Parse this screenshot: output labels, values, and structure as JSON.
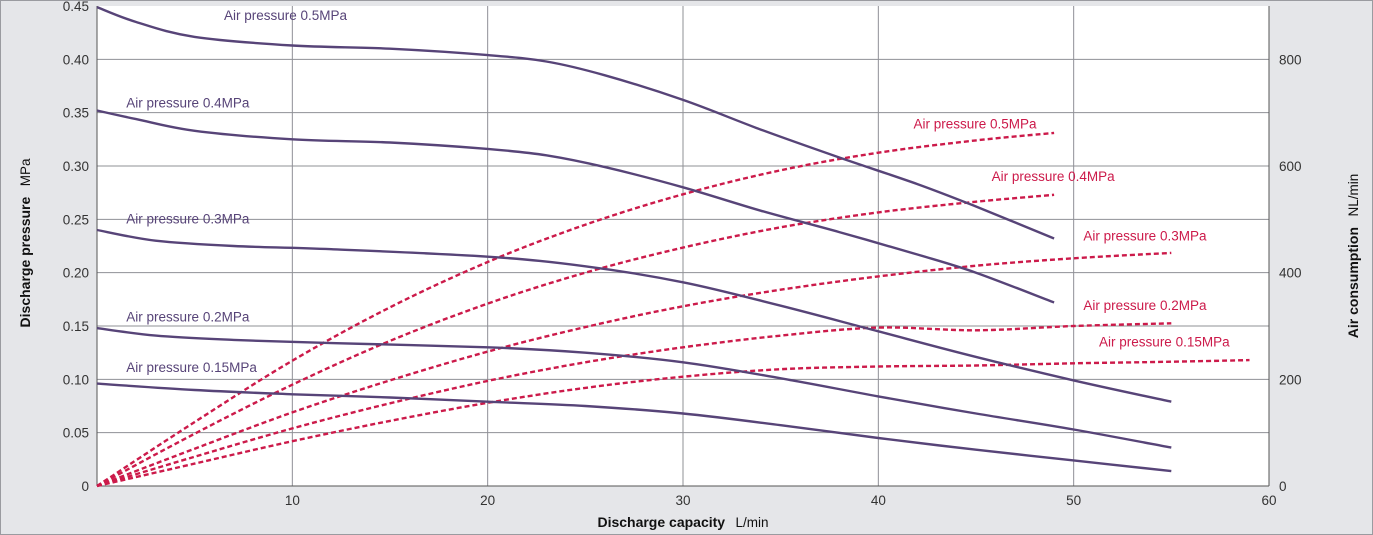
{
  "chart_data": {
    "type": "line",
    "xlabel": "Discharge capacity",
    "xlabel_unit": "L/min",
    "ylabel": "Discharge pressure",
    "ylabel_unit": "MPa",
    "y2label": "Air consumption",
    "y2label_unit": "NL/min",
    "xlim": [
      0,
      60
    ],
    "ylim": [
      0,
      0.45
    ],
    "y2lim": [
      0,
      900
    ],
    "x_ticks": [
      10,
      20,
      30,
      40,
      50,
      60
    ],
    "y_ticks": [
      {
        "v": 0,
        "label": "0"
      },
      {
        "v": 0.05,
        "label": "0.05"
      },
      {
        "v": 0.1,
        "label": "0.10"
      },
      {
        "v": 0.15,
        "label": "0.15"
      },
      {
        "v": 0.2,
        "label": "0.20"
      },
      {
        "v": 0.25,
        "label": "0.25"
      },
      {
        "v": 0.3,
        "label": "0.30"
      },
      {
        "v": 0.35,
        "label": "0.35"
      },
      {
        "v": 0.4,
        "label": "0.40"
      },
      {
        "v": 0.45,
        "label": "0.45"
      }
    ],
    "y2_ticks": [
      0,
      200,
      400,
      600,
      800
    ],
    "x_grid": [
      10,
      20,
      30,
      40,
      50
    ],
    "y_grid": [
      0.05,
      0.1,
      0.15,
      0.2,
      0.25,
      0.3,
      0.35,
      0.4
    ],
    "colors": {
      "pressure": "#574478",
      "air": "#cc1a4a",
      "frame": "#e5e6e9",
      "grid": "#8f9096"
    },
    "pressure_series": [
      {
        "name": "Air pressure 0.5MPa",
        "label_anchor": [
          6.5,
          0.437
        ],
        "points": [
          [
            0,
            0.449
          ],
          [
            2,
            0.435
          ],
          [
            5,
            0.421
          ],
          [
            10,
            0.413
          ],
          [
            15,
            0.41
          ],
          [
            20,
            0.404
          ],
          [
            23,
            0.398
          ],
          [
            26,
            0.385
          ],
          [
            30,
            0.362
          ],
          [
            34,
            0.334
          ],
          [
            38,
            0.308
          ],
          [
            42,
            0.283
          ],
          [
            45,
            0.262
          ],
          [
            49,
            0.232
          ]
        ]
      },
      {
        "name": "Air pressure 0.4MPa",
        "label_anchor": [
          1.5,
          0.355
        ],
        "points": [
          [
            0,
            0.352
          ],
          [
            2,
            0.344
          ],
          [
            5,
            0.333
          ],
          [
            10,
            0.325
          ],
          [
            15,
            0.322
          ],
          [
            20,
            0.316
          ],
          [
            23,
            0.31
          ],
          [
            26,
            0.299
          ],
          [
            30,
            0.28
          ],
          [
            34,
            0.258
          ],
          [
            38,
            0.238
          ],
          [
            42,
            0.217
          ],
          [
            45,
            0.2
          ],
          [
            49,
            0.172
          ]
        ]
      },
      {
        "name": "Air pressure 0.3MPa",
        "label_anchor": [
          1.5,
          0.246
        ],
        "points": [
          [
            0,
            0.24
          ],
          [
            3,
            0.23
          ],
          [
            7,
            0.225
          ],
          [
            12,
            0.222
          ],
          [
            20,
            0.215
          ],
          [
            25,
            0.206
          ],
          [
            30,
            0.191
          ],
          [
            35,
            0.169
          ],
          [
            40,
            0.145
          ],
          [
            45,
            0.121
          ],
          [
            50,
            0.099
          ],
          [
            55,
            0.079
          ]
        ]
      },
      {
        "name": "Air pressure 0.2MPa",
        "label_anchor": [
          1.5,
          0.154
        ],
        "points": [
          [
            0,
            0.148
          ],
          [
            3,
            0.141
          ],
          [
            7,
            0.137
          ],
          [
            12,
            0.134
          ],
          [
            20,
            0.13
          ],
          [
            25,
            0.125
          ],
          [
            30,
            0.116
          ],
          [
            35,
            0.101
          ],
          [
            40,
            0.084
          ],
          [
            45,
            0.068
          ],
          [
            50,
            0.053
          ],
          [
            55,
            0.036
          ]
        ]
      },
      {
        "name": "Air pressure 0.15MPa",
        "label_anchor": [
          1.5,
          0.107
        ],
        "points": [
          [
            0,
            0.096
          ],
          [
            5,
            0.09
          ],
          [
            10,
            0.086
          ],
          [
            15,
            0.083
          ],
          [
            20,
            0.079
          ],
          [
            25,
            0.075
          ],
          [
            30,
            0.068
          ],
          [
            35,
            0.057
          ],
          [
            40,
            0.045
          ],
          [
            45,
            0.034
          ],
          [
            50,
            0.024
          ],
          [
            55,
            0.014
          ]
        ]
      }
    ],
    "air_series": [
      {
        "name": "Air pressure 0.5MPa",
        "label_anchor": [
          41.8,
          670
        ],
        "points": [
          [
            0,
            0
          ],
          [
            5,
            120
          ],
          [
            10,
            235
          ],
          [
            15,
            335
          ],
          [
            20,
            420
          ],
          [
            25,
            490
          ],
          [
            30,
            547
          ],
          [
            35,
            592
          ],
          [
            40,
            625
          ],
          [
            45,
            648
          ],
          [
            49,
            662
          ]
        ]
      },
      {
        "name": "Air pressure 0.4MPa",
        "label_anchor": [
          45.8,
          572
        ],
        "points": [
          [
            0,
            0
          ],
          [
            5,
            98
          ],
          [
            10,
            190
          ],
          [
            15,
            272
          ],
          [
            20,
            342
          ],
          [
            25,
            400
          ],
          [
            30,
            447
          ],
          [
            35,
            485
          ],
          [
            40,
            513
          ],
          [
            45,
            533
          ],
          [
            49,
            546
          ]
        ]
      },
      {
        "name": "Air pressure 0.3MPa",
        "label_anchor": [
          50.5,
          460
        ],
        "points": [
          [
            0,
            0
          ],
          [
            5,
            70
          ],
          [
            10,
            138
          ],
          [
            15,
            198
          ],
          [
            20,
            252
          ],
          [
            25,
            298
          ],
          [
            30,
            337
          ],
          [
            35,
            368
          ],
          [
            40,
            393
          ],
          [
            45,
            413
          ],
          [
            50,
            427
          ],
          [
            55,
            437
          ]
        ]
      },
      {
        "name": "Air pressure 0.2MPa",
        "label_anchor": [
          50.5,
          330
        ],
        "points": [
          [
            0,
            0
          ],
          [
            5,
            55
          ],
          [
            10,
            108
          ],
          [
            15,
            155
          ],
          [
            20,
            197
          ],
          [
            25,
            232
          ],
          [
            30,
            260
          ],
          [
            35,
            282
          ],
          [
            40,
            297
          ],
          [
            45,
            292
          ],
          [
            50,
            300
          ],
          [
            55,
            305
          ]
        ]
      },
      {
        "name": "Air pressure 0.15MPa",
        "label_anchor": [
          51.3,
          262
        ],
        "points": [
          [
            0,
            0
          ],
          [
            5,
            42
          ],
          [
            10,
            84
          ],
          [
            15,
            122
          ],
          [
            20,
            156
          ],
          [
            25,
            184
          ],
          [
            30,
            205
          ],
          [
            35,
            219
          ],
          [
            40,
            224
          ],
          [
            45,
            226
          ],
          [
            50,
            230
          ],
          [
            55,
            233
          ],
          [
            59,
            236
          ]
        ]
      }
    ]
  }
}
